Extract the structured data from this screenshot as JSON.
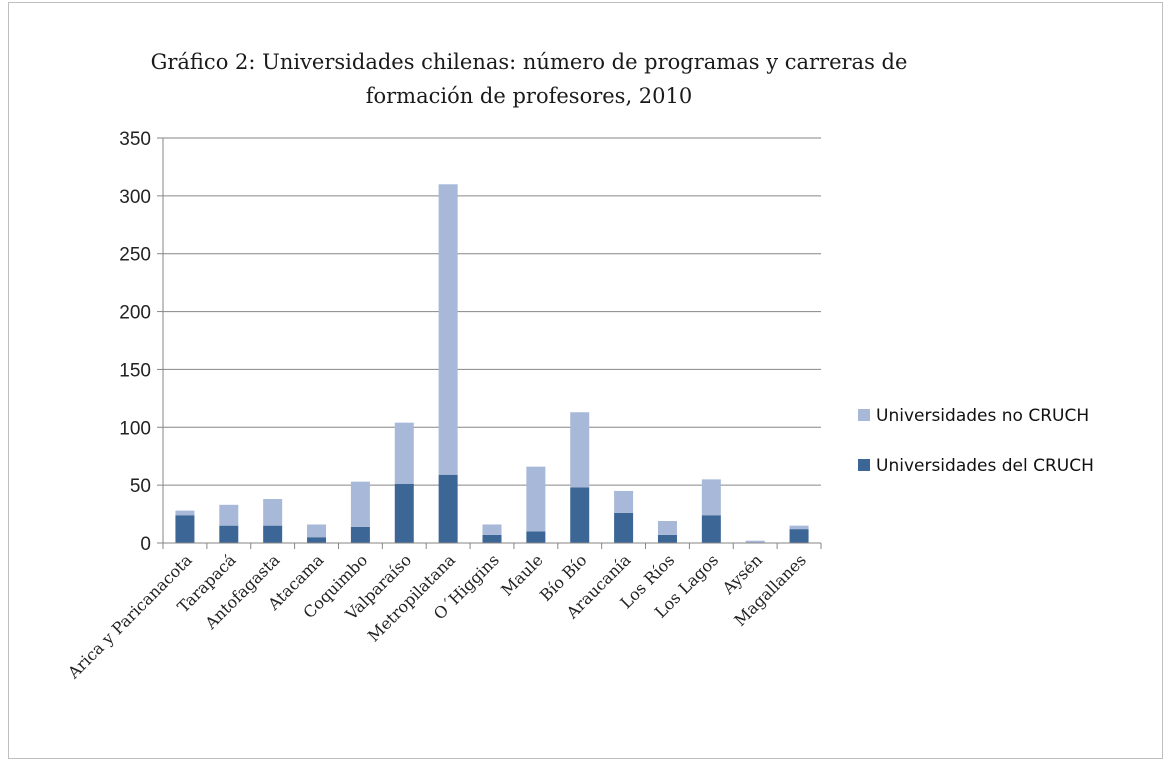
{
  "colors": {
    "cruch": "#3c6695",
    "no_cruch": "#a7b8d8",
    "grid": "#868686",
    "axis": "#868686"
  },
  "chart_data": {
    "type": "bar",
    "stacked": true,
    "title": "Gráfico 2: Universidades chilenas: número de programas y carreras de formación de profesores, 2010",
    "title_lines": [
      "Gráfico 2: Universidades chilenas: número de programas y carreras de",
      "formación de profesores, 2010"
    ],
    "xlabel": "",
    "ylabel": "",
    "ylim": [
      0,
      350
    ],
    "yticks": [
      0,
      50,
      100,
      150,
      200,
      250,
      300,
      350
    ],
    "grid": true,
    "legend_position": "right",
    "categories": [
      "Arica y Paricanacota",
      "Tarapacá",
      "Antofagasta",
      "Atacama",
      "Coquimbo",
      "Valparaíso",
      "Metropilatana",
      "O´Higgins",
      "Maule",
      "Bío Bío",
      "Araucanía",
      "Los Ríos",
      "Los Lagos",
      "Aysén",
      "Magallanes"
    ],
    "series": [
      {
        "name": "Universidades del CRUCH",
        "color": "#3c6695",
        "values": [
          24,
          15,
          15,
          5,
          14,
          51,
          59,
          7,
          10,
          48,
          26,
          7,
          24,
          0,
          12
        ]
      },
      {
        "name": "Universidades no CRUCH",
        "color": "#a7b8d8",
        "values": [
          4,
          18,
          23,
          11,
          39,
          53,
          251,
          9,
          56,
          65,
          19,
          12,
          31,
          2,
          3
        ]
      }
    ]
  }
}
